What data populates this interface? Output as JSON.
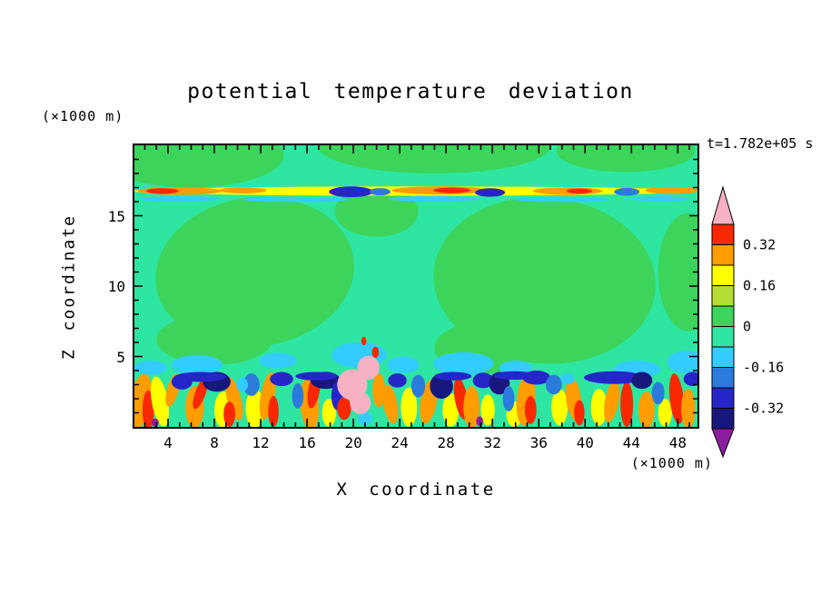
{
  "page": {
    "background": "#ffffff"
  },
  "chart_data": {
    "type": "filled_contour",
    "title": "potential temperature deviation",
    "xlabel": "X coordinate",
    "ylabel": "Z coordinate",
    "x_unit_label": "(×1000 m)",
    "y_unit_label": "(×1000 m)",
    "time_label": "t=1.782e+05 s",
    "x_range": [
      1.1,
      49.7
    ],
    "y_range": [
      0,
      20
    ],
    "x_ticks": [
      4,
      8,
      12,
      16,
      20,
      24,
      28,
      32,
      36,
      40,
      44,
      48
    ],
    "x_major_every": 4,
    "x_minor_step": 1,
    "y_ticks": [
      5,
      10,
      15
    ],
    "y_major_every": 5,
    "y_minor_step": 1,
    "grid": false,
    "colorbar": {
      "levels": [
        -0.4,
        -0.32,
        -0.24,
        -0.16,
        -0.08,
        0,
        0.08,
        0.16,
        0.24,
        0.32,
        0.4
      ],
      "band_colors_bottom_to_top": [
        "#17177e",
        "#2626c8",
        "#2b7bdc",
        "#33ccff",
        "#2ee6a2",
        "#3cd45a",
        "#b4dc32",
        "#ffff00",
        "#ff9c00",
        "#fa2800"
      ],
      "under_color": "#8c1f9e",
      "over_color": "#f6b1c3",
      "labels": [
        {
          "value": 0.32,
          "text": "0.32"
        },
        {
          "value": 0.16,
          "text": "0.16"
        },
        {
          "value": 0,
          "text": "0"
        },
        {
          "value": -0.16,
          "text": "-0.16"
        },
        {
          "value": -0.32,
          "text": "-0.32"
        }
      ]
    },
    "colors": {
      "bg": "#2ee6a2",
      "green": "#3cd45a",
      "yg": "#b4dc32",
      "yellow": "#ffff00",
      "orange": "#ff9c00",
      "red": "#fa2800",
      "cyan": "#33ccff",
      "blue": "#2b7bdc",
      "navy": "#2626c8",
      "dnavy": "#17177e",
      "pink": "#f6b1c3",
      "purple": "#8c1f9e"
    },
    "field": {
      "background_band": "bg",
      "shapes": [
        [
          "green",
          6,
          19.3,
          8,
          2.3,
          0
        ],
        [
          "green",
          27,
          19.9,
          10,
          1.9,
          0
        ],
        [
          "green",
          43.5,
          19.6,
          6,
          1.5,
          0
        ],
        [
          "green",
          11.5,
          11,
          8.6,
          5.3,
          -8
        ],
        [
          "green",
          8,
          6.2,
          5,
          1.8,
          0
        ],
        [
          "green",
          36.5,
          10.4,
          9.6,
          5.9,
          5
        ],
        [
          "green",
          31,
          5.6,
          4,
          1.8,
          0
        ],
        [
          "green",
          48.9,
          11,
          2.6,
          4.2,
          0
        ],
        [
          "green",
          22,
          15.3,
          3.6,
          1.8,
          0
        ],
        [
          "cyan",
          2.5,
          4.2,
          1.4,
          0.5,
          0
        ],
        [
          "cyan",
          6.5,
          4.4,
          2.2,
          0.7,
          0
        ],
        [
          "cyan",
          13.5,
          4.7,
          1.6,
          0.55,
          0
        ],
        [
          "cyan",
          20.5,
          5.1,
          2.4,
          0.9,
          0
        ],
        [
          "cyan",
          24.3,
          4.4,
          1.4,
          0.6,
          0
        ],
        [
          "cyan",
          29.5,
          4.5,
          2.6,
          0.8,
          0
        ],
        [
          "cyan",
          34,
          4.2,
          1.4,
          0.5,
          0
        ],
        [
          "cyan",
          44.5,
          4.1,
          2,
          0.6,
          0
        ],
        [
          "cyan",
          48.7,
          4.6,
          1.6,
          0.8,
          0
        ],
        [
          "cyan",
          5,
          16.2,
          3.5,
          0.18,
          0
        ],
        [
          "cyan",
          15,
          16.15,
          4.5,
          0.18,
          0
        ],
        [
          "cyan",
          27,
          16.2,
          4,
          0.18,
          0
        ],
        [
          "cyan",
          38,
          16.15,
          4,
          0.18,
          0
        ],
        [
          "cyan",
          46.5,
          16.2,
          2.5,
          0.18,
          0
        ],
        [
          "yellow",
          25.4,
          16.75,
          24.5,
          0.33,
          0
        ],
        [
          "orange",
          5,
          16.75,
          3.6,
          0.27,
          0
        ],
        [
          "red",
          3.5,
          16.75,
          1.4,
          0.2,
          0
        ],
        [
          "orange",
          10.5,
          16.8,
          2,
          0.22,
          0
        ],
        [
          "orange",
          27.5,
          16.8,
          4.2,
          0.28,
          0
        ],
        [
          "red",
          28.5,
          16.8,
          1.6,
          0.2,
          0
        ],
        [
          "orange",
          38.5,
          16.75,
          3,
          0.26,
          0
        ],
        [
          "red",
          39.5,
          16.75,
          1.1,
          0.18,
          0
        ],
        [
          "orange",
          47.5,
          16.8,
          2.3,
          0.26,
          0
        ],
        [
          "navy",
          19.8,
          16.7,
          1.9,
          0.38,
          0
        ],
        [
          "blue",
          22.3,
          16.7,
          0.9,
          0.26,
          0
        ],
        [
          "navy",
          31.8,
          16.65,
          1.3,
          0.3,
          0
        ],
        [
          "blue",
          43.6,
          16.7,
          1.1,
          0.28,
          0
        ],
        [
          "orange",
          1.6,
          1.8,
          0.9,
          2,
          10
        ],
        [
          "red",
          2.3,
          1.2,
          0.5,
          1.4,
          0
        ],
        [
          "yellow",
          3.3,
          1.8,
          0.7,
          1.8,
          -10
        ],
        [
          "orange",
          4.4,
          2.6,
          0.5,
          1.2,
          15
        ],
        [
          "orange",
          6.3,
          1.4,
          0.8,
          1.5,
          0
        ],
        [
          "red",
          6.8,
          2.4,
          0.45,
          1.2,
          20
        ],
        [
          "yellow",
          8.8,
          1.2,
          0.8,
          1.3,
          0
        ],
        [
          "orange",
          9.7,
          2,
          0.6,
          1.6,
          -15
        ],
        [
          "red",
          9.3,
          0.9,
          0.5,
          0.9,
          0
        ],
        [
          "yellow",
          11.5,
          1.3,
          0.8,
          1.4,
          0
        ],
        [
          "orange",
          12.6,
          2.2,
          0.6,
          1.7,
          10
        ],
        [
          "red",
          13.1,
          1.1,
          0.45,
          1.1,
          0
        ],
        [
          "orange",
          16.2,
          1.6,
          0.8,
          1.8,
          -5
        ],
        [
          "red",
          16.6,
          2.6,
          0.5,
          1.3,
          10
        ],
        [
          "yellow",
          17.9,
          1,
          0.6,
          1,
          0
        ],
        [
          "orange",
          22.2,
          2.6,
          0.55,
          1.2,
          0
        ],
        [
          "orange",
          23.2,
          1.6,
          0.6,
          1.4,
          -10
        ],
        [
          "yellow",
          24.8,
          1.4,
          0.7,
          1.4,
          0
        ],
        [
          "orange",
          26.5,
          1.8,
          0.7,
          1.6,
          10
        ],
        [
          "yellow",
          28.4,
          1.2,
          0.7,
          1.2,
          0
        ],
        [
          "red",
          29.3,
          2,
          0.55,
          1.5,
          -10
        ],
        [
          "orange",
          30.2,
          1.4,
          0.7,
          1.5,
          0
        ],
        [
          "yellow",
          31.6,
          1.2,
          0.6,
          1.1,
          0
        ],
        [
          "yellow",
          33.9,
          0.9,
          0.7,
          0.9,
          0
        ],
        [
          "orange",
          34.9,
          1.9,
          0.8,
          1.8,
          5
        ],
        [
          "red",
          35.3,
          1.2,
          0.5,
          1,
          0
        ],
        [
          "yellow",
          37.8,
          1.4,
          0.7,
          1.3,
          0
        ],
        [
          "orange",
          39,
          2,
          0.65,
          1.6,
          -8
        ],
        [
          "red",
          39.5,
          1,
          0.45,
          0.9,
          0
        ],
        [
          "yellow",
          41.2,
          1.4,
          0.7,
          1.3,
          0
        ],
        [
          "orange",
          42.3,
          1.8,
          0.6,
          1.5,
          10
        ],
        [
          "red",
          43.6,
          1.6,
          0.55,
          1.6,
          0
        ],
        [
          "orange",
          45.3,
          1.2,
          0.7,
          1.3,
          0
        ],
        [
          "yellow",
          46.9,
          1,
          0.6,
          1,
          0
        ],
        [
          "red",
          47.9,
          2,
          0.6,
          1.8,
          -6
        ],
        [
          "orange",
          48.9,
          1.3,
          0.6,
          1.4,
          0
        ],
        [
          "navy",
          5.2,
          3.2,
          0.9,
          0.55,
          0
        ],
        [
          "dnavy",
          8.2,
          3.2,
          1.2,
          0.7,
          0
        ],
        [
          "blue",
          11.2,
          3,
          0.7,
          0.8,
          0
        ],
        [
          "navy",
          13.8,
          3.4,
          1,
          0.5,
          0
        ],
        [
          "blue",
          15.2,
          2.2,
          0.5,
          0.9,
          0
        ],
        [
          "dnavy",
          17.6,
          3.3,
          1.3,
          0.6,
          0
        ],
        [
          "navy",
          18.6,
          2.2,
          0.5,
          1,
          0
        ],
        [
          "navy",
          23.8,
          3.3,
          0.8,
          0.5,
          0
        ],
        [
          "blue",
          25.6,
          2.9,
          0.6,
          0.8,
          0
        ],
        [
          "dnavy",
          27.6,
          2.9,
          1,
          0.9,
          0
        ],
        [
          "navy",
          31.2,
          3.3,
          0.9,
          0.55,
          0
        ],
        [
          "dnavy",
          32.6,
          3.1,
          0.9,
          0.8,
          0
        ],
        [
          "blue",
          33.4,
          2,
          0.5,
          0.9,
          0
        ],
        [
          "navy",
          35.8,
          3.5,
          1.2,
          0.5,
          0
        ],
        [
          "blue",
          37.3,
          3,
          0.7,
          0.7,
          0
        ],
        [
          "navy",
          42.5,
          3.5,
          2.6,
          0.45,
          0
        ],
        [
          "dnavy",
          44.9,
          3.3,
          0.9,
          0.6,
          0
        ],
        [
          "blue",
          46.3,
          2.4,
          0.55,
          0.8,
          0
        ],
        [
          "navy",
          49.3,
          3.4,
          0.8,
          0.5,
          0
        ],
        [
          "navy",
          6.8,
          3.55,
          2.2,
          0.35,
          0
        ],
        [
          "navy",
          16.8,
          3.6,
          1.8,
          0.3,
          0
        ],
        [
          "navy",
          28.6,
          3.6,
          1.6,
          0.3,
          0
        ],
        [
          "navy",
          33.9,
          3.65,
          1.8,
          0.3,
          0
        ],
        [
          "cyan",
          10.4,
          3,
          0.5,
          0.5,
          0
        ],
        [
          "cyan",
          21,
          0.6,
          0.6,
          0.5,
          0
        ],
        [
          "cyan",
          38.5,
          3.4,
          0.6,
          0.4,
          0
        ],
        [
          "purple",
          2.9,
          0.3,
          0.3,
          0.3,
          0
        ],
        [
          "purple",
          30.9,
          0.4,
          0.3,
          0.35,
          0
        ],
        [
          "red",
          19.2,
          1.3,
          0.6,
          0.8,
          0
        ],
        [
          "pink",
          19.9,
          3,
          1.3,
          1.1,
          0
        ],
        [
          "pink",
          21.3,
          4.2,
          0.95,
          0.85,
          0
        ],
        [
          "pink",
          20.6,
          1.7,
          0.9,
          0.8,
          0
        ],
        [
          "red",
          21.9,
          5.3,
          0.3,
          0.4,
          0
        ],
        [
          "red",
          20.9,
          6.1,
          0.22,
          0.3,
          0
        ]
      ]
    }
  }
}
